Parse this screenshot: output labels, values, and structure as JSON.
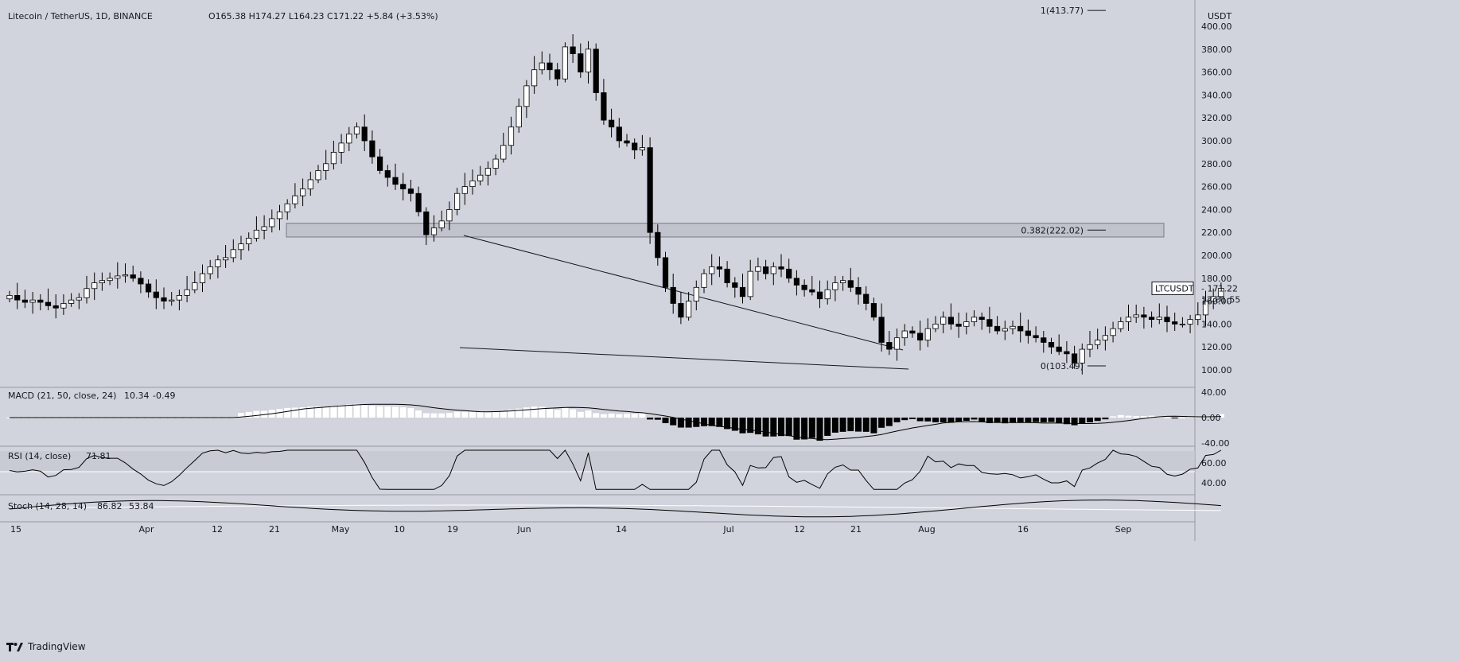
{
  "header": {
    "symbol": "Litecoin / TetherUS, 1D, BINANCE",
    "ohlc": "O165.38 H174.27 L164.23 C171.22 +5.84 (+3.53%)"
  },
  "axis": {
    "currency": "USDT",
    "price_ticks": [
      "400.00",
      "380.00",
      "360.00",
      "340.00",
      "320.00",
      "300.00",
      "280.00",
      "260.00",
      "240.00",
      "220.00",
      "200.00",
      "180.00",
      "160.00",
      "140.00",
      "120.00",
      "100.00"
    ],
    "macd_ticks": [
      "40.00",
      "0.00",
      "-40.00"
    ],
    "rsi_ticks": [
      "60.00",
      "40.00"
    ],
    "time_ticks": [
      "15",
      "Apr",
      "12",
      "21",
      "May",
      "10",
      "19",
      "Jun",
      "14",
      "Jul",
      "12",
      "21",
      "Aug",
      "16",
      "Sep"
    ]
  },
  "price_tag": {
    "symbol": "LTCUSDT",
    "price": "171.22",
    "countdown": "12:31:55"
  },
  "fib_levels": [
    {
      "label": "1(413.77)",
      "value": 413.77
    },
    {
      "label": "0.382(222.02)",
      "value": 222.02
    },
    {
      "label": "0(103.49)",
      "value": 103.49
    }
  ],
  "indicators": {
    "macd": {
      "title": "MACD (21, 50, close, 24)",
      "value1": "10.34",
      "value2": "-0.49"
    },
    "rsi": {
      "title": "RSI (14, close)",
      "value": "71.81"
    },
    "stoch": {
      "title": "Stoch (14, 28, 14)",
      "k": "86.82",
      "d": "53.84"
    }
  },
  "footer": {
    "brand": "TradingView"
  },
  "colors": {
    "background": "#d1d4dc",
    "up": "#ffffff",
    "down": "#000000",
    "line": "#000000"
  },
  "chart_data": {
    "type": "candlestick",
    "title": "Litecoin / TetherUS, 1D, BINANCE",
    "y_range": [
      90,
      420
    ],
    "resistance_zone": [
      216,
      228
    ],
    "closes": [
      165,
      161,
      159,
      161,
      159,
      156,
      154,
      158,
      161,
      163,
      171,
      176,
      178,
      180,
      182,
      183,
      180,
      175,
      168,
      163,
      160,
      161,
      165,
      170,
      176,
      184,
      190,
      196,
      198,
      205,
      210,
      215,
      222,
      225,
      232,
      238,
      245,
      252,
      258,
      266,
      274,
      280,
      290,
      298,
      306,
      312,
      300,
      286,
      274,
      268,
      262,
      258,
      254,
      238,
      218,
      224,
      230,
      240,
      254,
      260,
      265,
      270,
      276,
      284,
      296,
      312,
      330,
      348,
      362,
      368,
      362,
      354,
      382,
      376,
      360,
      380,
      342,
      318,
      312,
      300,
      298,
      292,
      294,
      220,
      198,
      172,
      158,
      146,
      160,
      172,
      184,
      190,
      188,
      176,
      172,
      164,
      186,
      190,
      184,
      190,
      188,
      180,
      174,
      170,
      168,
      162,
      170,
      176,
      178,
      172,
      166,
      158,
      146,
      124,
      118,
      128,
      134,
      132,
      126,
      136,
      140,
      146,
      140,
      138,
      142,
      146,
      144,
      138,
      134,
      136,
      138,
      134,
      130,
      128,
      124,
      120,
      116,
      114,
      106,
      118,
      122,
      126,
      130,
      136,
      142,
      146,
      148,
      146,
      144,
      146,
      142,
      140,
      140,
      144,
      148,
      160,
      164,
      171.22
    ]
  }
}
